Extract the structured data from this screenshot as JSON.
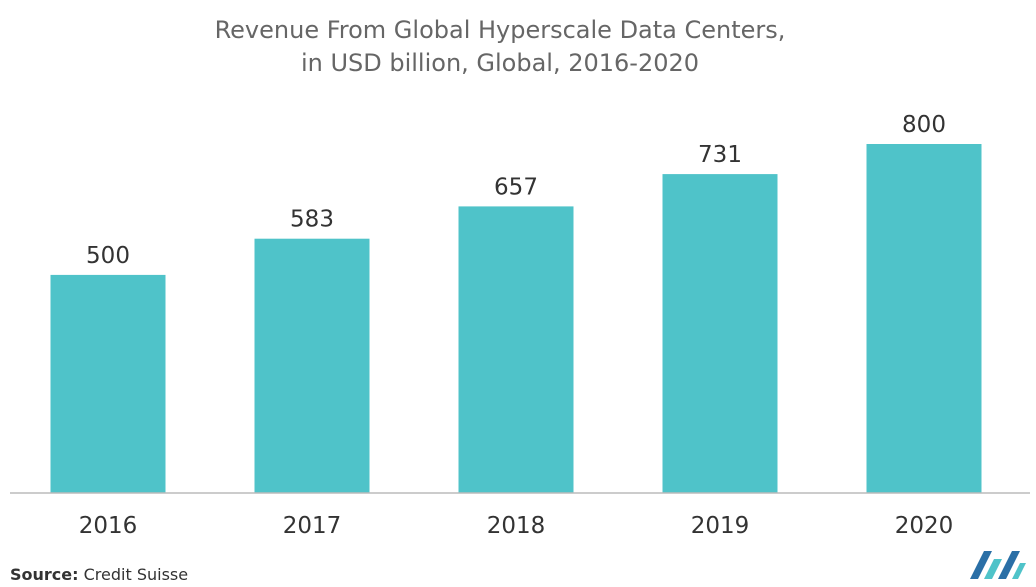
{
  "chart_data": {
    "type": "bar",
    "title": "Revenue From Global Hyperscale Data Centers,",
    "subtitle": "in USD billion, Global, 2016-2020",
    "categories": [
      "2016",
      "2017",
      "2018",
      "2019",
      "2020"
    ],
    "values": [
      500,
      583,
      657,
      731,
      800
    ],
    "xlabel": "",
    "ylabel": "",
    "ylim": [
      0,
      800
    ],
    "grid": false,
    "bar_color": "#4FC3C9",
    "axis_color": "#BBBBBB"
  },
  "source": {
    "prefix": "Source:",
    "text": "Credit Suisse"
  },
  "logo": {
    "icon": "mordor-intelligence-logo-icon",
    "colors": [
      "#2A6FA6",
      "#4FC3C9"
    ]
  }
}
